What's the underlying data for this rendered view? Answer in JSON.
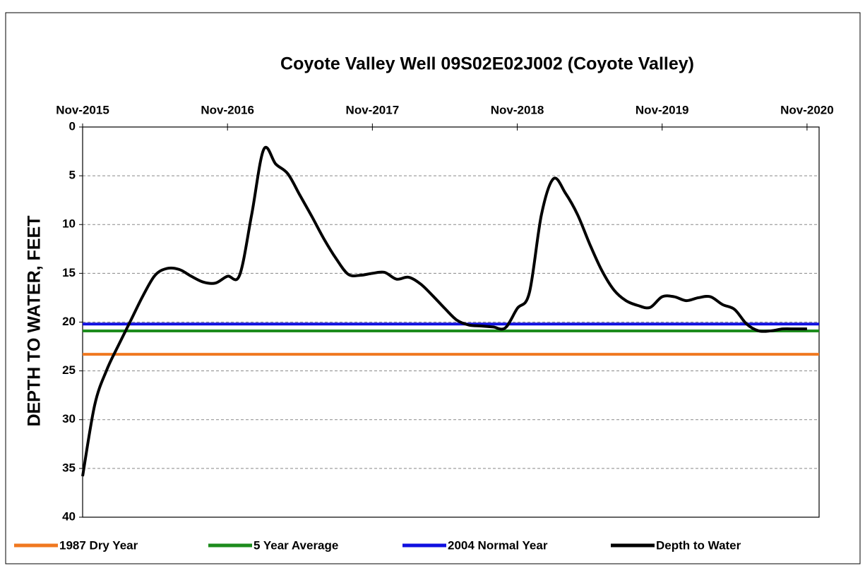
{
  "chart_data": {
    "type": "line",
    "title": "Coyote Valley Well 09S02E02J002 (Coyote Valley)",
    "y_label": "DEPTH TO WATER, FEET",
    "y_inverted": true,
    "ylim": [
      0,
      40
    ],
    "yticks": [
      0,
      5,
      10,
      15,
      20,
      25,
      30,
      35,
      40
    ],
    "grid": true,
    "xlim": [
      "2015-11",
      "2020-12"
    ],
    "xticks": [
      {
        "value": "2015-11",
        "label": "Nov-2015"
      },
      {
        "value": "2016-11",
        "label": "Nov-2016"
      },
      {
        "value": "2017-11",
        "label": "Nov-2017"
      },
      {
        "value": "2018-11",
        "label": "Nov-2018"
      },
      {
        "value": "2019-11",
        "label": "Nov-2019"
      },
      {
        "value": "2020-11",
        "label": "Nov-2020"
      }
    ],
    "legend": "bottom",
    "reference_lines": [
      {
        "name": "1987 Dry Year",
        "color": "#f07820",
        "value": 23.3
      },
      {
        "name": "5 Year Average",
        "color": "#1e8c1e",
        "value": 20.9
      },
      {
        "name": "2004 Normal Year",
        "color": "#1010e0",
        "value": 20.2
      }
    ],
    "x": [
      "2015-11",
      "2015-12",
      "2016-01",
      "2016-02",
      "2016-03",
      "2016-04",
      "2016-05",
      "2016-06",
      "2016-07",
      "2016-08",
      "2016-09",
      "2016-10",
      "2016-11",
      "2016-12",
      "2017-01",
      "2017-02",
      "2017-03",
      "2017-04",
      "2017-05",
      "2017-06",
      "2017-07",
      "2017-08",
      "2017-09",
      "2017-10",
      "2017-11",
      "2017-12",
      "2018-01",
      "2018-02",
      "2018-03",
      "2018-04",
      "2018-05",
      "2018-06",
      "2018-07",
      "2018-08",
      "2018-09",
      "2018-10",
      "2018-11",
      "2018-12",
      "2019-01",
      "2019-02",
      "2019-03",
      "2019-04",
      "2019-05",
      "2019-06",
      "2019-07",
      "2019-08",
      "2019-09",
      "2019-10",
      "2019-11",
      "2019-12",
      "2020-01",
      "2020-02",
      "2020-03",
      "2020-04",
      "2020-05",
      "2020-06",
      "2020-07",
      "2020-08",
      "2020-09",
      "2020-10",
      "2020-11"
    ],
    "series": [
      {
        "name": "Depth to Water",
        "color": "#000000",
        "values": [
          35.8,
          28.5,
          24.9,
          22.3,
          19.8,
          17.3,
          15.2,
          14.5,
          14.6,
          15.3,
          15.9,
          16,
          15.3,
          15.2,
          9,
          2.3,
          3.8,
          4.8,
          7,
          9.2,
          11.5,
          13.5,
          15.1,
          15.2,
          15,
          14.9,
          15.6,
          15.4,
          16.1,
          17.3,
          18.6,
          19.8,
          20.3,
          20.4,
          20.5,
          20.6,
          18.6,
          17,
          9,
          5.3,
          6.8,
          9,
          12,
          14.7,
          16.7,
          17.8,
          18.3,
          18.5,
          17.4,
          17.4,
          17.8,
          17.5,
          17.4,
          18.2,
          18.7,
          20.2,
          20.9,
          20.9,
          20.7,
          20.7,
          20.7
        ]
      }
    ]
  }
}
